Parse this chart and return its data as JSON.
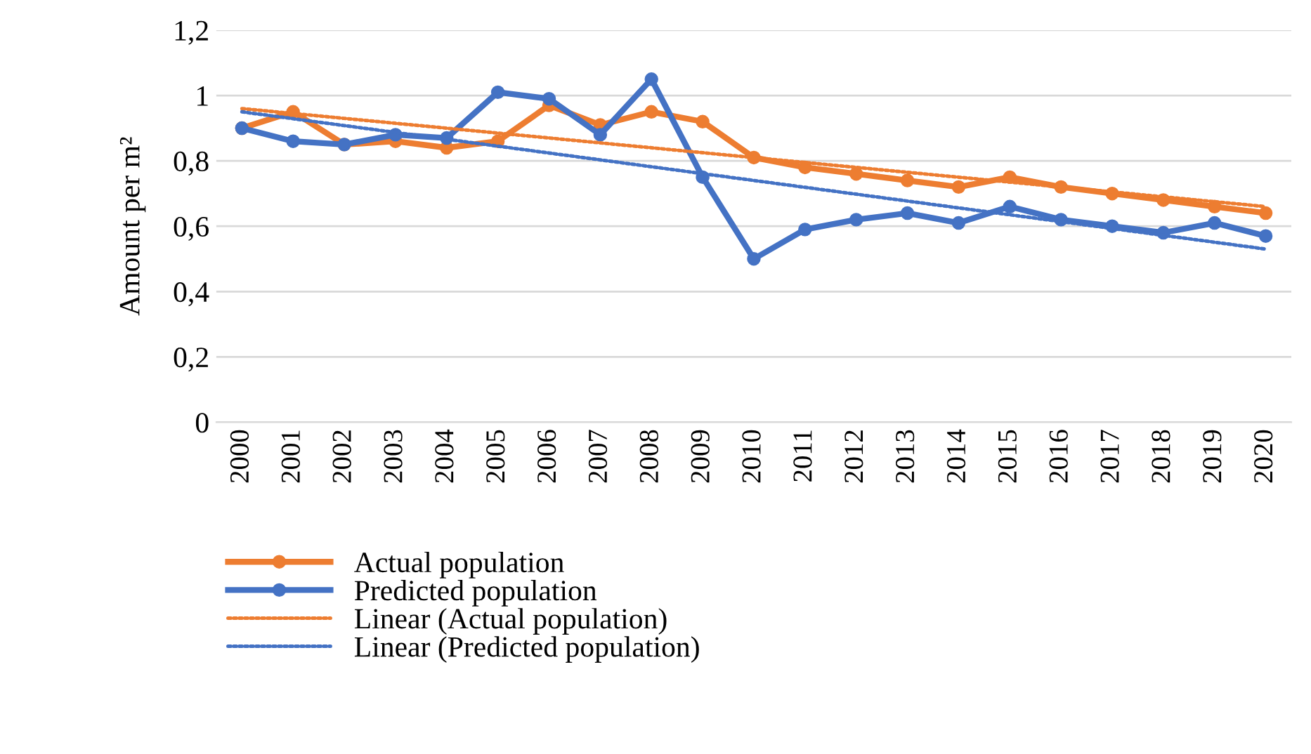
{
  "chart_data": {
    "type": "line",
    "ylabel": "Amount per m²",
    "categories": [
      "2000",
      "2001",
      "2002",
      "2003",
      "2004",
      "2005",
      "2006",
      "2007",
      "2008",
      "2009",
      "2010",
      "2011",
      "2012",
      "2013",
      "2014",
      "2015",
      "2016",
      "2017",
      "2018",
      "2019",
      "2020"
    ],
    "series": [
      {
        "name": "Actual population",
        "color": "#ed7d31",
        "marker": "circle",
        "line_style": "solid",
        "values": [
          0.9,
          0.95,
          0.85,
          0.86,
          0.84,
          0.86,
          0.97,
          0.91,
          0.95,
          0.92,
          0.81,
          0.78,
          0.76,
          0.74,
          0.72,
          0.75,
          0.72,
          0.7,
          0.68,
          0.66,
          0.64
        ]
      },
      {
        "name": "Predicted population",
        "color": "#4472c4",
        "marker": "circle",
        "line_style": "solid",
        "values": [
          0.9,
          0.86,
          0.85,
          0.88,
          0.87,
          1.01,
          0.99,
          0.88,
          1.05,
          0.75,
          0.5,
          0.59,
          0.62,
          0.64,
          0.61,
          0.66,
          0.62,
          0.6,
          0.58,
          0.61,
          0.57
        ]
      },
      {
        "name": "Linear (Actual population)",
        "color": "#ed7d31",
        "marker": "none",
        "line_style": "dotted",
        "values": [
          0.96,
          0.945,
          0.93,
          0.915,
          0.9,
          0.885,
          0.87,
          0.855,
          0.84,
          0.825,
          0.81,
          0.795,
          0.78,
          0.765,
          0.75,
          0.735,
          0.72,
          0.705,
          0.69,
          0.675,
          0.66
        ]
      },
      {
        "name": "Linear (Predicted population)",
        "color": "#4472c4",
        "marker": "none",
        "line_style": "dotted",
        "values": [
          0.95,
          0.929,
          0.908,
          0.887,
          0.866,
          0.845,
          0.824,
          0.803,
          0.782,
          0.761,
          0.74,
          0.719,
          0.698,
          0.677,
          0.656,
          0.635,
          0.614,
          0.593,
          0.572,
          0.551,
          0.53
        ]
      }
    ],
    "ylim": [
      0,
      1.2
    ],
    "yticks": [
      0,
      {
        "value": 0.2,
        "label": "0,2"
      },
      {
        "value": 0.4,
        "label": "0,4"
      },
      {
        "value": 0.6,
        "label": "0,6"
      },
      {
        "value": 0.8,
        "label": "0,8"
      },
      1,
      {
        "value": 1.2,
        "label": "1,2"
      }
    ],
    "grid": "y",
    "legend": "bottom"
  }
}
